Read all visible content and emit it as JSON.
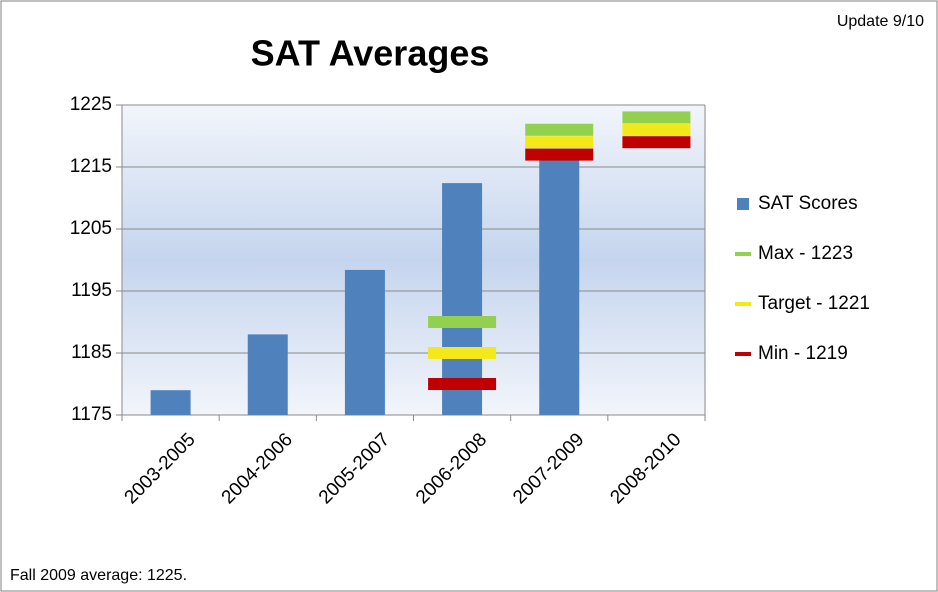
{
  "chart_data": {
    "type": "bar",
    "title": "SAT Averages",
    "subtitle": "Update 9/10",
    "annotation": "Fall 2009 average: 1225.",
    "categories": [
      "2003-2005",
      "2004-2006",
      "2005-2007",
      "2006-2008",
      "2007-2009",
      "2008-2010"
    ],
    "series": [
      {
        "name": "SAT Scores",
        "color": "#4f81bd",
        "kind": "bar",
        "values": [
          1179,
          1188,
          1198.4,
          1212.4,
          1217,
          null
        ]
      },
      {
        "name": "Max - 1223",
        "color": "#92d050",
        "kind": "marker",
        "values": [
          null,
          null,
          null,
          1190,
          1221,
          1223
        ]
      },
      {
        "name": "Target - 1221",
        "color": "#f2e81a",
        "kind": "marker",
        "values": [
          null,
          null,
          null,
          1185,
          1219,
          1221
        ]
      },
      {
        "name": "Min - 1219",
        "color": "#c00000",
        "kind": "marker",
        "values": [
          null,
          null,
          null,
          1180,
          1217,
          1219
        ]
      }
    ],
    "ylim": [
      1175,
      1225
    ],
    "yticks": [
      1175,
      1185,
      1195,
      1205,
      1215,
      1225
    ],
    "grid": true,
    "legend": "right"
  }
}
